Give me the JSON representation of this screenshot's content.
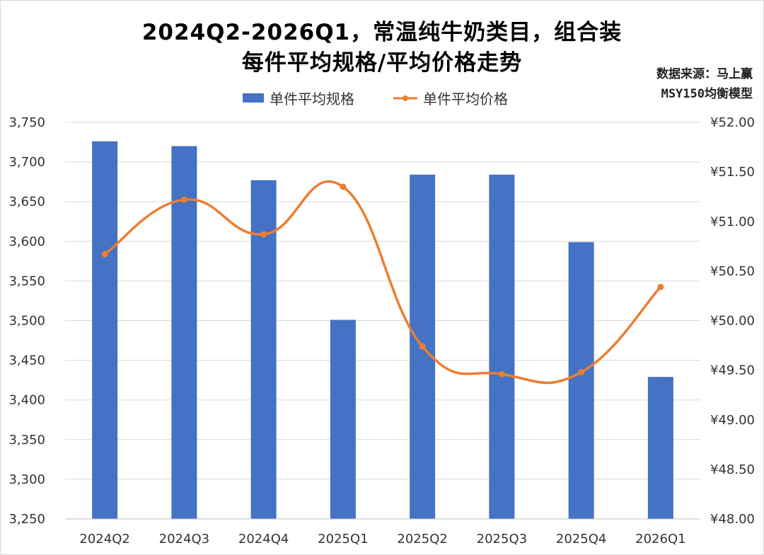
{
  "title_line1": "2024Q2-2026Q1，常温纯牛奶类目，组合装",
  "title_line2": "每件平均规格/平均价格走势",
  "source_line1": "数据来源：马上赢",
  "source_line2": "MSY150均衡模型",
  "colors": {
    "bar": "#4472c4",
    "line": "#ed7d31",
    "grid": "#d9d9d9"
  },
  "chart_data": {
    "type": "bar",
    "title": "2024Q2-2026Q1，常温纯牛奶类目，组合装 每件平均规格/平均价格走势",
    "categories": [
      "2024Q2",
      "2024Q3",
      "2024Q4",
      "2025Q1",
      "2025Q2",
      "2025Q3",
      "2025Q4",
      "2026Q1"
    ],
    "series": [
      {
        "name": "单件平均规格",
        "type": "bar",
        "axis": "left",
        "values": [
          3726,
          3720,
          3677,
          3501,
          3684,
          3684,
          3599,
          3429
        ]
      },
      {
        "name": "单件平均价格",
        "type": "line",
        "axis": "right",
        "smooth": true,
        "marker": "circle",
        "values": [
          50.67,
          51.22,
          50.87,
          51.35,
          49.74,
          49.46,
          49.48,
          50.34
        ]
      }
    ],
    "left_axis": {
      "ylim": [
        3250,
        3750
      ],
      "step": 50,
      "tick_labels": [
        "3,250",
        "3,300",
        "3,350",
        "3,400",
        "3,450",
        "3,500",
        "3,550",
        "3,600",
        "3,650",
        "3,700",
        "3,750"
      ]
    },
    "right_axis": {
      "ylim": [
        48,
        52
      ],
      "step": 0.5,
      "tick_labels": [
        "¥48.00",
        "¥48.50",
        "¥49.00",
        "¥49.50",
        "¥50.00",
        "¥50.50",
        "¥51.00",
        "¥51.50",
        "¥52.00"
      ]
    },
    "grid": true,
    "legend": "top-center"
  }
}
